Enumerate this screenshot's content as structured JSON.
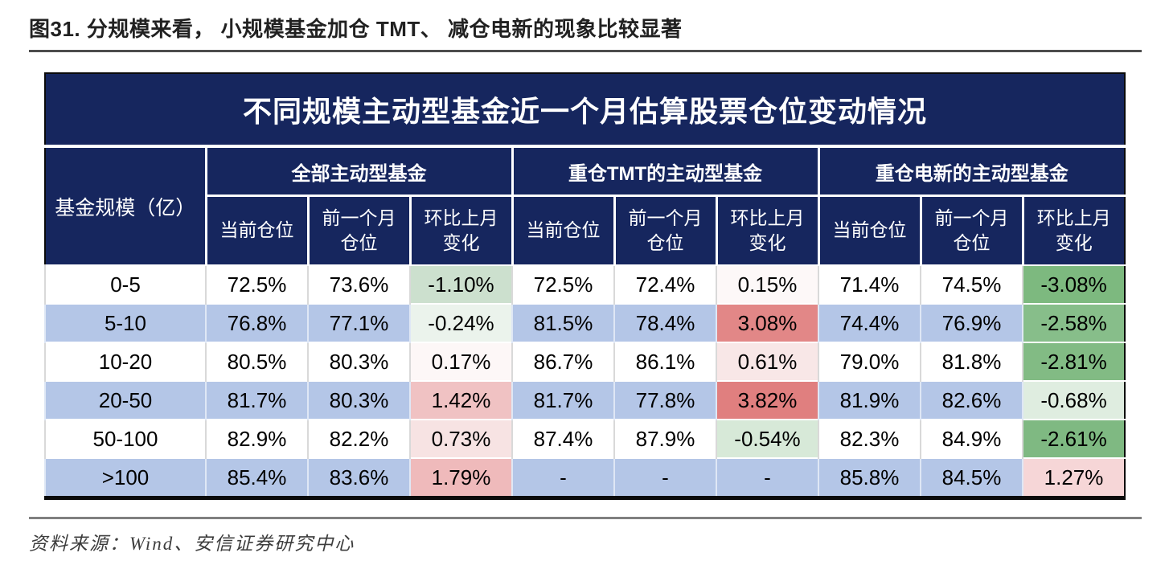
{
  "caption": "图31. 分规模来看， 小规模基金加仓 TMT、 减仓电新的现象比较显著",
  "source_note": "资料来源：Wind、安信证券研究中心",
  "colors": {
    "header_navy": "#16265e",
    "stripe_blue": "#b4c6e7",
    "strong_green": "#7db97f",
    "strong_red": "#e07f7f",
    "border_black": "#0a0a0a"
  },
  "chart_data": {
    "type": "table",
    "title": "不同规模主动型基金近一个月估算股票仓位变动情况",
    "corner_header": "基金规模（亿）",
    "column_groups": [
      "全部主动型基金",
      "重仓TMT的主动型基金",
      "重仓电新的主动型基金"
    ],
    "sub_columns": [
      "当前仓位",
      "前一个月\n仓位",
      "环比上月\n变化"
    ],
    "rows": [
      {
        "fund_size": "0-5",
        "striped": false,
        "values": [
          "72.5%",
          "73.6%",
          "-1.10%",
          "72.5%",
          "72.4%",
          "0.15%",
          "71.4%",
          "74.5%",
          "-3.08%"
        ],
        "cell_bg": {
          "2": "#cce0ce",
          "5": "#fdf8f8",
          "8": "#7db97f"
        }
      },
      {
        "fund_size": "5-10",
        "striped": true,
        "values": [
          "76.8%",
          "77.1%",
          "-0.24%",
          "81.5%",
          "78.4%",
          "3.08%",
          "74.4%",
          "76.9%",
          "-2.58%"
        ],
        "cell_bg": {
          "2": "#ebf3ec",
          "5": "#e28787",
          "8": "#87be8a"
        }
      },
      {
        "fund_size": "10-20",
        "striped": false,
        "values": [
          "80.5%",
          "80.3%",
          "0.17%",
          "86.7%",
          "86.1%",
          "0.61%",
          "79.0%",
          "81.8%",
          "-2.81%"
        ],
        "cell_bg": {
          "2": "#fdf7f7",
          "5": "#f8e7e7",
          "8": "#82bb84"
        }
      },
      {
        "fund_size": "20-50",
        "striped": true,
        "values": [
          "81.7%",
          "80.3%",
          "1.42%",
          "81.7%",
          "77.8%",
          "3.82%",
          "81.9%",
          "82.6%",
          "-0.68%"
        ],
        "cell_bg": {
          "2": "#f0c2c3",
          "5": "#e07f7f",
          "8": "#dfede0"
        }
      },
      {
        "fund_size": "50-100",
        "striped": false,
        "values": [
          "82.9%",
          "82.2%",
          "0.73%",
          "87.4%",
          "87.9%",
          "-0.54%",
          "82.3%",
          "84.9%",
          "-2.61%"
        ],
        "cell_bg": {
          "2": "#f7e3e3",
          "5": "#d7e9d8",
          "8": "#7fb982"
        }
      },
      {
        "fund_size": ">100",
        "striped": true,
        "values": [
          "85.4%",
          "83.6%",
          "1.79%",
          "-",
          "-",
          "-",
          "85.8%",
          "84.5%",
          "1.27%"
        ],
        "cell_bg": {
          "2": "#efbabb",
          "8": "#f6d6d7"
        }
      }
    ]
  }
}
